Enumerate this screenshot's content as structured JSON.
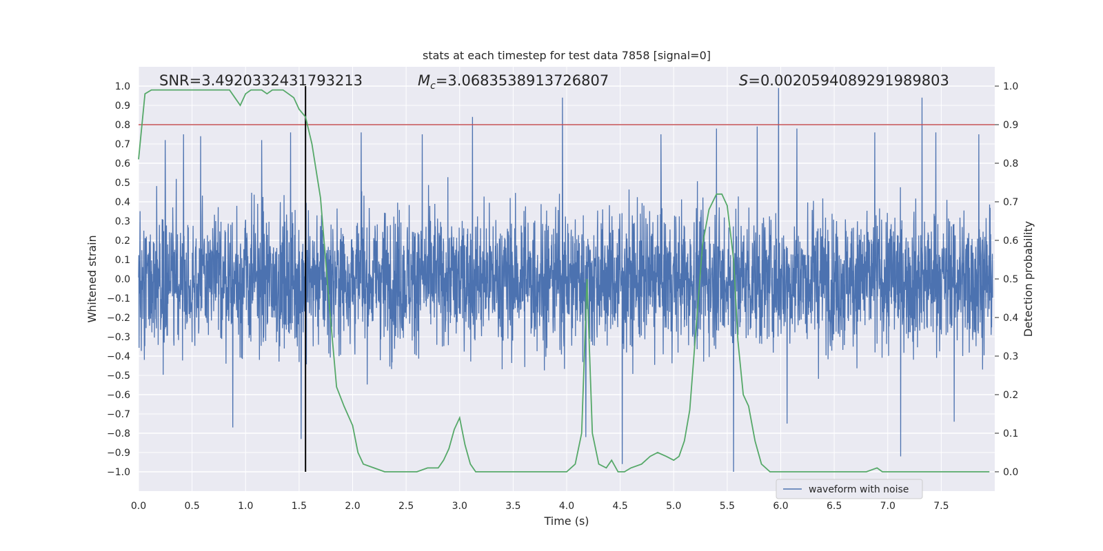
{
  "chart_data": {
    "type": "line",
    "title": "stats at each timestep for test data 7858 [signal=0]",
    "xlabel": "Time (s)",
    "ylabel": "Whitened strain",
    "y2label": "Detection probability",
    "xlim": [
      0.0,
      8.0
    ],
    "ylim": [
      -1.1,
      1.1
    ],
    "y2lim": [
      -0.05,
      1.05
    ],
    "x_ticks": [
      "0.0",
      "0.5",
      "1.0",
      "1.5",
      "2.0",
      "2.5",
      "3.0",
      "3.5",
      "4.0",
      "4.5",
      "5.0",
      "5.5",
      "6.0",
      "6.5",
      "7.0",
      "7.5"
    ],
    "y_ticks": [
      "1.0",
      "0.9",
      "0.8",
      "0.7",
      "0.6",
      "0.5",
      "0.4",
      "0.3",
      "0.2",
      "0.1",
      "0.0",
      "−0.1",
      "−0.2",
      "−0.3",
      "−0.4",
      "−0.5",
      "−0.6",
      "−0.7",
      "−0.8",
      "−0.9",
      "−1.0"
    ],
    "y2_ticks": [
      "1.0",
      "0.9",
      "0.8",
      "0.7",
      "0.6",
      "0.5",
      "0.4",
      "0.3",
      "0.2",
      "0.1",
      "0.0"
    ],
    "grid": true,
    "legend_position": "lower-right",
    "annotations": {
      "snr": "SNR=3.4920332431793213",
      "mc_symbol": "M",
      "mc_sub": "c",
      "mc_value": "=3.0683538913726807",
      "s_symbol": "S",
      "s_value": "=0.0020594089291989803"
    },
    "threshold_line": {
      "y2": 0.9,
      "color": "#c44e52"
    },
    "marker_line": {
      "x": 1.56,
      "color": "#000000"
    },
    "series": [
      {
        "name": "waveform with noise",
        "axis": "left",
        "color": "#4c72b0",
        "typical_amplitude": 0.4,
        "spikes": [
          {
            "x": 0.25,
            "y": 0.72
          },
          {
            "x": 0.42,
            "y": 0.75
          },
          {
            "x": 0.58,
            "y": 0.74
          },
          {
            "x": 0.88,
            "y": -0.77
          },
          {
            "x": 1.15,
            "y": 0.72
          },
          {
            "x": 1.42,
            "y": 0.76
          },
          {
            "x": 1.52,
            "y": -0.83
          },
          {
            "x": 2.08,
            "y": 0.76
          },
          {
            "x": 2.65,
            "y": 0.75
          },
          {
            "x": 3.12,
            "y": 0.84
          },
          {
            "x": 3.96,
            "y": 0.94
          },
          {
            "x": 4.18,
            "y": -0.82
          },
          {
            "x": 4.52,
            "y": -0.96
          },
          {
            "x": 4.88,
            "y": 0.75
          },
          {
            "x": 5.4,
            "y": 0.78
          },
          {
            "x": 5.56,
            "y": -1.0
          },
          {
            "x": 5.78,
            "y": 0.79
          },
          {
            "x": 5.98,
            "y": 0.99
          },
          {
            "x": 6.06,
            "y": -0.75
          },
          {
            "x": 6.15,
            "y": 0.78
          },
          {
            "x": 6.88,
            "y": 0.76
          },
          {
            "x": 7.12,
            "y": -0.92
          },
          {
            "x": 7.32,
            "y": 0.94
          },
          {
            "x": 7.45,
            "y": 0.76
          },
          {
            "x": 7.62,
            "y": -0.74
          },
          {
            "x": 7.85,
            "y": 0.75
          }
        ]
      },
      {
        "name": "detection probability",
        "axis": "right",
        "color": "#55a868",
        "x": [
          0.0,
          0.06,
          0.12,
          0.2,
          0.4,
          0.6,
          0.75,
          0.85,
          0.9,
          0.95,
          1.0,
          1.05,
          1.1,
          1.15,
          1.2,
          1.25,
          1.3,
          1.35,
          1.4,
          1.45,
          1.5,
          1.56,
          1.62,
          1.7,
          1.78,
          1.85,
          1.92,
          2.0,
          2.05,
          2.1,
          2.2,
          2.3,
          2.4,
          2.5,
          2.6,
          2.7,
          2.8,
          2.85,
          2.9,
          2.95,
          3.0,
          3.05,
          3.1,
          3.15,
          3.25,
          3.4,
          3.6,
          3.8,
          4.0,
          4.08,
          4.14,
          4.19,
          4.24,
          4.3,
          4.37,
          4.42,
          4.48,
          4.54,
          4.6,
          4.7,
          4.78,
          4.85,
          4.93,
          5.0,
          5.05,
          5.1,
          5.15,
          5.2,
          5.27,
          5.33,
          5.4,
          5.45,
          5.5,
          5.56,
          5.6,
          5.65,
          5.7,
          5.76,
          5.82,
          5.9,
          6.0,
          6.2,
          6.4,
          6.6,
          6.8,
          6.9,
          6.95,
          7.0,
          7.2,
          7.5,
          7.8,
          7.95
        ],
        "y": [
          0.81,
          0.98,
          0.99,
          0.99,
          0.99,
          0.99,
          0.99,
          0.99,
          0.97,
          0.95,
          0.98,
          0.99,
          0.99,
          0.99,
          0.98,
          0.99,
          0.99,
          0.99,
          0.98,
          0.97,
          0.94,
          0.92,
          0.85,
          0.71,
          0.44,
          0.22,
          0.17,
          0.12,
          0.05,
          0.02,
          0.01,
          0.0,
          0.0,
          0.0,
          0.0,
          0.01,
          0.01,
          0.03,
          0.06,
          0.11,
          0.14,
          0.07,
          0.02,
          0.0,
          0.0,
          0.0,
          0.0,
          0.0,
          0.0,
          0.02,
          0.1,
          0.5,
          0.1,
          0.02,
          0.01,
          0.03,
          0.0,
          0.0,
          0.01,
          0.02,
          0.04,
          0.05,
          0.04,
          0.03,
          0.04,
          0.08,
          0.16,
          0.34,
          0.59,
          0.68,
          0.72,
          0.72,
          0.69,
          0.55,
          0.34,
          0.2,
          0.17,
          0.08,
          0.02,
          0.0,
          0.0,
          0.0,
          0.0,
          0.0,
          0.0,
          0.01,
          0.0,
          0.0,
          0.0,
          0.0,
          0.0,
          0.0
        ]
      }
    ]
  }
}
